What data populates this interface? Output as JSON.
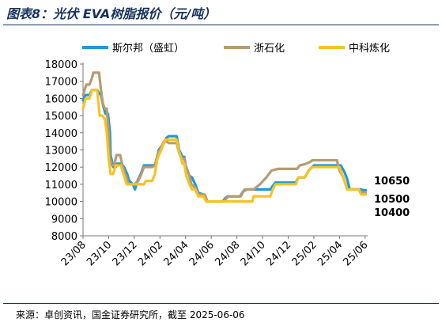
{
  "title": "图表8：光伏 EVA树脂报价（元/吨）",
  "source": "来源：卓创资讯，国金证券研究所，截至 2025-06-06",
  "chart_data": {
    "type": "line",
    "title": "图表8：光伏 EVA树脂报价（元/吨）",
    "xlabel": "",
    "ylabel": "",
    "ylim": [
      8000,
      18000
    ],
    "yticks": [
      8000,
      9000,
      10000,
      11000,
      12000,
      13000,
      14000,
      15000,
      16000,
      17000,
      18000
    ],
    "xlim": [
      0,
      22.2
    ],
    "xticks": [
      {
        "label": "23/08",
        "x": 0
      },
      {
        "label": "23/10",
        "x": 2
      },
      {
        "label": "23/12",
        "x": 4
      },
      {
        "label": "24/02",
        "x": 6
      },
      {
        "label": "24/04",
        "x": 8
      },
      {
        "label": "24/06",
        "x": 10
      },
      {
        "label": "24/08",
        "x": 12
      },
      {
        "label": "24/10",
        "x": 14
      },
      {
        "label": "24/12",
        "x": 16
      },
      {
        "label": "25/02",
        "x": 18
      },
      {
        "label": "25/04",
        "x": 20
      },
      {
        "label": "25/06",
        "x": 22
      }
    ],
    "legend_position": "top",
    "grid": false,
    "series": [
      {
        "name": "斯尔邦（盛虹）",
        "color": "#1e9ad6",
        "points": [
          [
            0,
            15900
          ],
          [
            0.2,
            16200
          ],
          [
            0.5,
            16200
          ],
          [
            0.7,
            16500
          ],
          [
            1.1,
            16500
          ],
          [
            1.25,
            16300
          ],
          [
            1.4,
            16200
          ],
          [
            1.6,
            15500
          ],
          [
            1.75,
            15100
          ],
          [
            1.95,
            15100
          ],
          [
            2.1,
            14000
          ],
          [
            2.15,
            12700
          ],
          [
            2.35,
            12000
          ],
          [
            2.55,
            12000
          ],
          [
            2.65,
            12200
          ],
          [
            3.0,
            12200
          ],
          [
            3.2,
            12000
          ],
          [
            3.45,
            11600
          ],
          [
            3.6,
            11200
          ],
          [
            3.9,
            11000
          ],
          [
            4.05,
            10700
          ],
          [
            4.25,
            11200
          ],
          [
            4.5,
            11600
          ],
          [
            4.75,
            12100
          ],
          [
            5.5,
            12100
          ],
          [
            5.7,
            12200
          ],
          [
            5.9,
            13000
          ],
          [
            6.3,
            13400
          ],
          [
            6.5,
            13700
          ],
          [
            6.7,
            13800
          ],
          [
            7.3,
            13800
          ],
          [
            7.5,
            13000
          ],
          [
            7.75,
            12600
          ],
          [
            7.9,
            12600
          ],
          [
            8.0,
            12100
          ],
          [
            8.3,
            11500
          ],
          [
            8.5,
            11400
          ],
          [
            8.75,
            11000
          ],
          [
            9.0,
            10500
          ],
          [
            9.4,
            10400
          ],
          [
            9.6,
            10000
          ],
          [
            10.9,
            10000
          ],
          [
            11.1,
            10200
          ],
          [
            11.3,
            10300
          ],
          [
            12.25,
            10300
          ],
          [
            12.5,
            10600
          ],
          [
            12.8,
            10700
          ],
          [
            14.6,
            10700
          ],
          [
            14.8,
            10900
          ],
          [
            15.0,
            11100
          ],
          [
            16.6,
            11100
          ],
          [
            16.8,
            11400
          ],
          [
            17.3,
            11400
          ],
          [
            17.6,
            11800
          ],
          [
            18.0,
            12100
          ],
          [
            20.1,
            12100
          ],
          [
            20.4,
            11700
          ],
          [
            20.6,
            11300
          ],
          [
            20.8,
            10700
          ],
          [
            21.7,
            10700
          ],
          [
            21.9,
            10650
          ],
          [
            22.05,
            10650
          ]
        ]
      },
      {
        "name": "浙石化",
        "color": "#b79b72",
        "points": [
          [
            0,
            16200
          ],
          [
            0.25,
            16800
          ],
          [
            0.5,
            16800
          ],
          [
            0.7,
            17200
          ],
          [
            0.8,
            17500
          ],
          [
            1.25,
            17500
          ],
          [
            1.4,
            16500
          ],
          [
            1.55,
            15700
          ],
          [
            1.7,
            15400
          ],
          [
            1.85,
            15400
          ],
          [
            2.0,
            14000
          ],
          [
            2.1,
            12500
          ],
          [
            2.25,
            12100
          ],
          [
            2.45,
            12100
          ],
          [
            2.6,
            12700
          ],
          [
            2.9,
            12700
          ],
          [
            3.1,
            12000
          ],
          [
            3.3,
            11600
          ],
          [
            3.55,
            11000
          ],
          [
            3.8,
            11000
          ],
          [
            4.0,
            11000
          ],
          [
            4.3,
            11200
          ],
          [
            4.5,
            11500
          ],
          [
            4.75,
            12000
          ],
          [
            5.4,
            12000
          ],
          [
            5.6,
            12100
          ],
          [
            5.8,
            12700
          ],
          [
            6.0,
            13000
          ],
          [
            6.3,
            13500
          ],
          [
            6.5,
            13500
          ],
          [
            6.7,
            13400
          ],
          [
            7.3,
            13400
          ],
          [
            7.5,
            12800
          ],
          [
            7.75,
            12500
          ],
          [
            7.9,
            12500
          ],
          [
            8.0,
            12000
          ],
          [
            8.3,
            11500
          ],
          [
            8.45,
            11000
          ],
          [
            8.75,
            10800
          ],
          [
            9.0,
            10400
          ],
          [
            9.5,
            10400
          ],
          [
            9.7,
            10000
          ],
          [
            11.0,
            10000
          ],
          [
            11.2,
            10200
          ],
          [
            11.4,
            10300
          ],
          [
            12.3,
            10300
          ],
          [
            12.6,
            10700
          ],
          [
            13.3,
            10700
          ],
          [
            13.8,
            11000
          ],
          [
            14.3,
            11400
          ],
          [
            14.7,
            11800
          ],
          [
            15.2,
            11900
          ],
          [
            16.7,
            11900
          ],
          [
            16.9,
            12100
          ],
          [
            17.4,
            12200
          ],
          [
            17.7,
            12300
          ],
          [
            17.9,
            12400
          ],
          [
            19.8,
            12400
          ],
          [
            20.0,
            11800
          ],
          [
            20.3,
            11400
          ],
          [
            20.6,
            10700
          ],
          [
            21.5,
            10700
          ],
          [
            21.8,
            10500
          ],
          [
            22.05,
            10500
          ]
        ]
      },
      {
        "name": "中科炼化",
        "color": "#f6c324",
        "points": [
          [
            0,
            15400
          ],
          [
            0.2,
            16000
          ],
          [
            0.5,
            16000
          ],
          [
            0.7,
            16500
          ],
          [
            1.1,
            16500
          ],
          [
            1.3,
            15000
          ],
          [
            1.5,
            15000
          ],
          [
            1.7,
            14800
          ],
          [
            1.85,
            14000
          ],
          [
            2.0,
            12500
          ],
          [
            2.15,
            11600
          ],
          [
            2.35,
            11600
          ],
          [
            2.55,
            12100
          ],
          [
            2.95,
            12100
          ],
          [
            3.15,
            11600
          ],
          [
            3.4,
            11000
          ],
          [
            3.6,
            11000
          ],
          [
            3.8,
            11000
          ],
          [
            4.1,
            11000
          ],
          [
            4.3,
            11000
          ],
          [
            4.6,
            11000
          ],
          [
            4.75,
            11000
          ],
          [
            4.9,
            11200
          ],
          [
            5.4,
            11200
          ],
          [
            5.6,
            11600
          ],
          [
            5.8,
            12500
          ],
          [
            6.1,
            13000
          ],
          [
            6.4,
            13600
          ],
          [
            7.3,
            13600
          ],
          [
            7.5,
            12900
          ],
          [
            7.75,
            12200
          ],
          [
            7.9,
            12200
          ],
          [
            8.05,
            11500
          ],
          [
            8.3,
            11000
          ],
          [
            8.5,
            10700
          ],
          [
            8.75,
            10700
          ],
          [
            9.0,
            10300
          ],
          [
            9.4,
            10300
          ],
          [
            9.6,
            10000
          ],
          [
            12.2,
            10000
          ],
          [
            12.4,
            10000
          ],
          [
            13.2,
            10000
          ],
          [
            13.3,
            10300
          ],
          [
            13.4,
            10300
          ],
          [
            14.6,
            10300
          ],
          [
            14.8,
            10700
          ],
          [
            15.0,
            11000
          ],
          [
            16.6,
            11000
          ],
          [
            16.8,
            11400
          ],
          [
            17.3,
            11400
          ],
          [
            17.6,
            11800
          ],
          [
            17.9,
            12000
          ],
          [
            20.0,
            12000
          ],
          [
            20.3,
            11400
          ],
          [
            20.6,
            10700
          ],
          [
            21.5,
            10700
          ],
          [
            21.7,
            10400
          ],
          [
            22.05,
            10400
          ]
        ]
      }
    ],
    "end_labels": [
      {
        "text": "10650",
        "value": 10650,
        "series": "斯尔邦（盛虹）"
      },
      {
        "text": "10500",
        "value": 10500,
        "series": "浙石化"
      },
      {
        "text": "10400",
        "value": 10400,
        "series": "中科炼化"
      }
    ]
  }
}
